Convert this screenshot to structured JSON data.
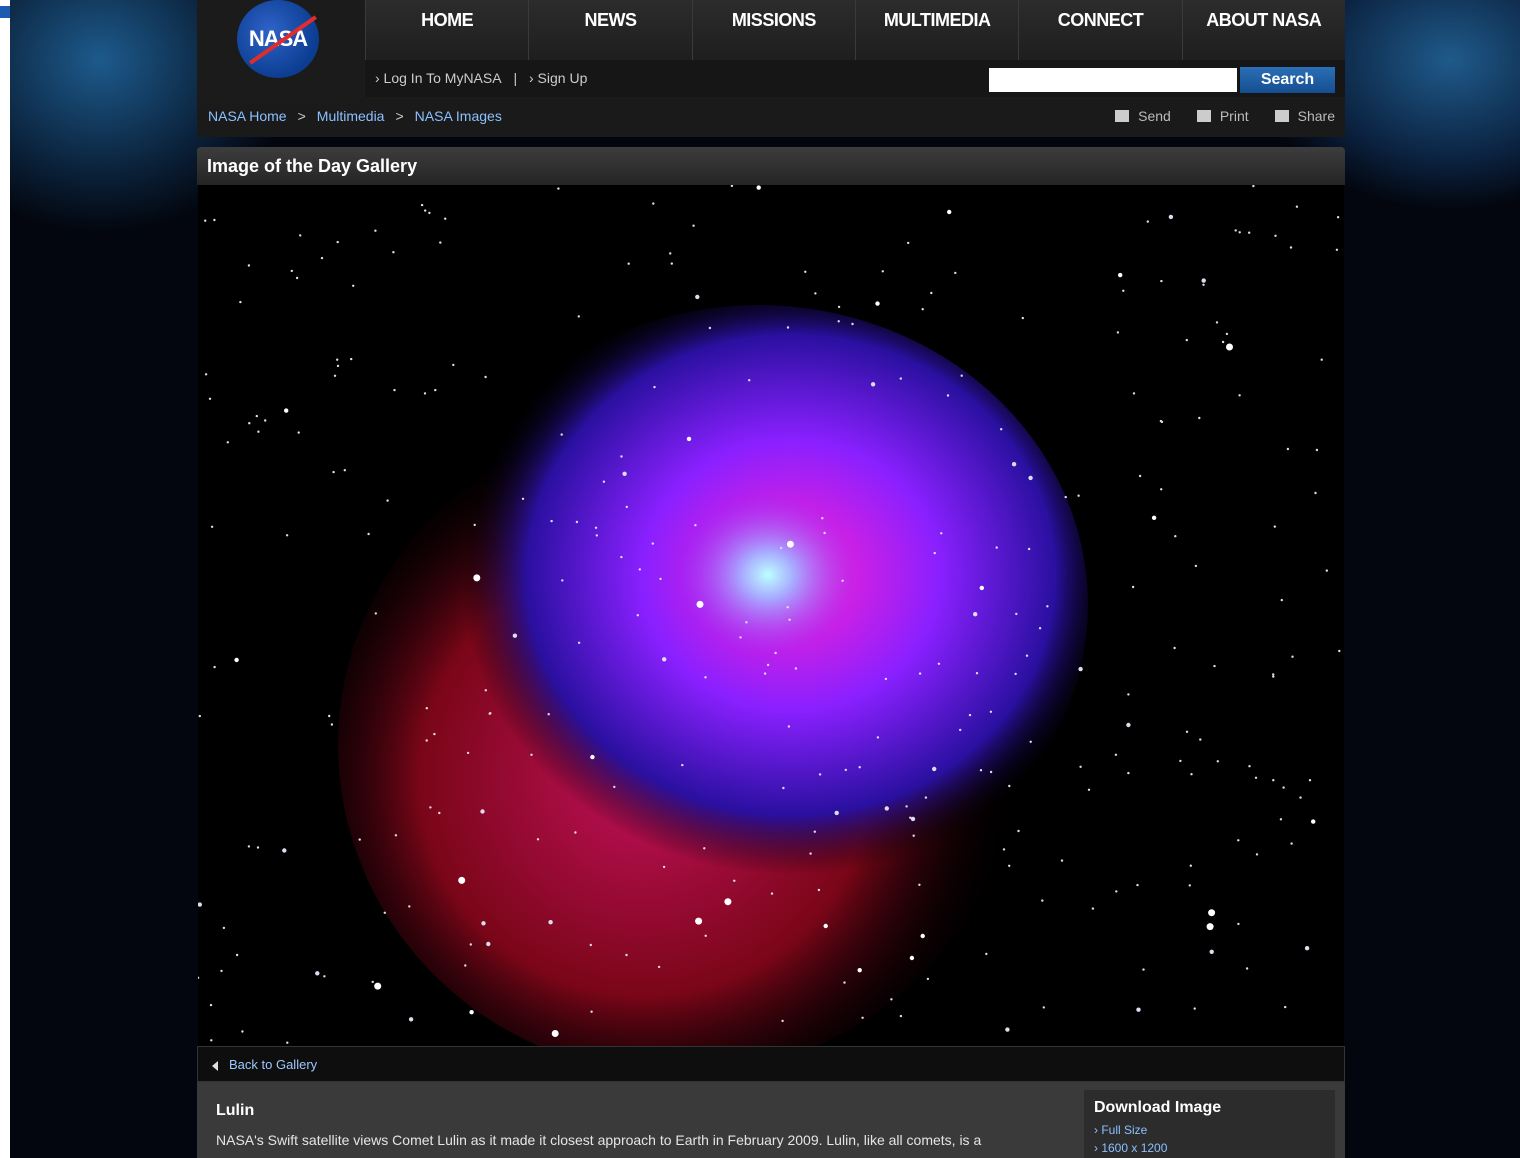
{
  "logo": "NASA",
  "nav": [
    "HOME",
    "NEWS",
    "MISSIONS",
    "MULTIMEDIA",
    "CONNECT",
    "ABOUT NASA"
  ],
  "account": {
    "login": "› Log In To MyNASA",
    "separator": "|",
    "signup": "› Sign Up"
  },
  "search": {
    "button": "Search"
  },
  "breadcrumb": {
    "items": [
      "NASA Home",
      "Multimedia",
      "NASA Images"
    ],
    "separator": ">"
  },
  "tools": [
    "Send",
    "Print",
    "Share"
  ],
  "gallery": {
    "title": "Image of the Day Gallery",
    "back": "Back to Gallery"
  },
  "article": {
    "title": "Lulin",
    "text": "NASA's Swift satellite views Comet Lulin as it made it closest approach to Earth in February 2009. Lulin, like all comets, is a"
  },
  "download": {
    "title": "Download Image",
    "links": [
      "› Full Size",
      "› 1600 x 1200"
    ]
  }
}
